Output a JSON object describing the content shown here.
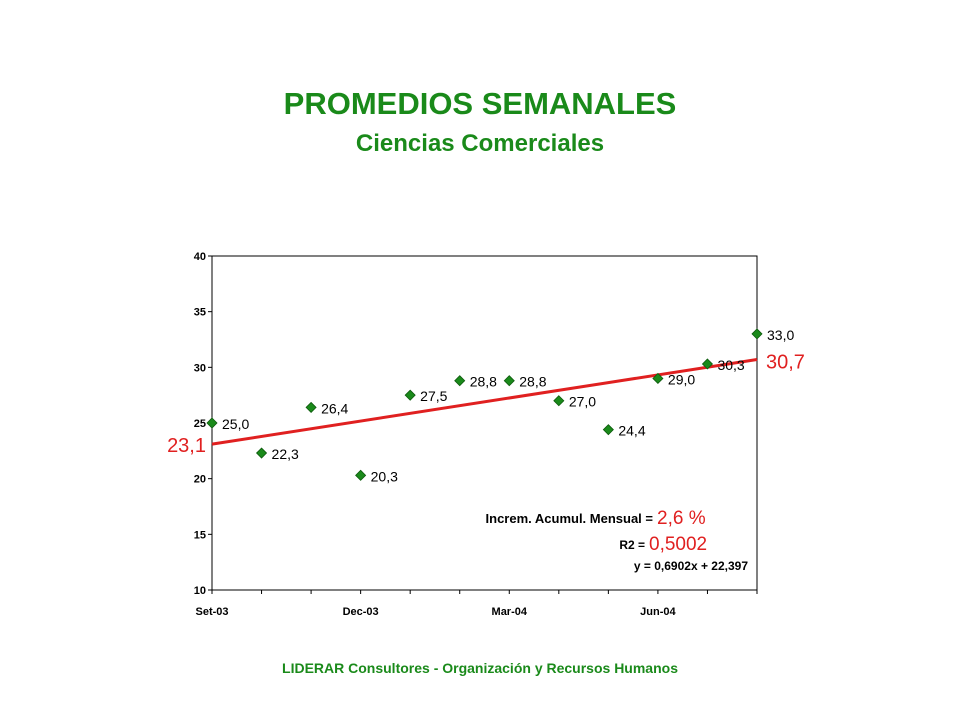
{
  "header": {
    "title": "PROMEDIOS SEMANALES",
    "subtitle": "Ciencias Comerciales"
  },
  "footer": "LIDERAR Consultores - Organización y Recursos Humanos",
  "colors": {
    "title": "#1a8a1a",
    "marker": "#1a8a1a",
    "trend": "#e02020",
    "annotation_value": "#e02020"
  },
  "chart_data": {
    "type": "scatter",
    "title": "PROMEDIOS SEMANALES",
    "subtitle": "Ciencias Comerciales",
    "xlabel": "",
    "ylabel": "",
    "ylim": [
      10,
      40
    ],
    "yticks": [
      "10",
      "15",
      "20",
      "25",
      "30",
      "35",
      "40"
    ],
    "x_categories": [
      "Set-03",
      "",
      "",
      "Dec-03",
      "",
      "",
      "Mar-04",
      "",
      "",
      "Jun-04",
      "",
      ""
    ],
    "x": [
      1,
      2,
      3,
      4,
      5,
      6,
      7,
      8,
      9,
      10,
      11,
      12
    ],
    "values": [
      25.0,
      22.3,
      26.4,
      20.3,
      27.5,
      28.8,
      28.8,
      27.0,
      24.4,
      29.0,
      30.3,
      33.0
    ],
    "value_labels": [
      "25,0",
      "22,3",
      "26,4",
      "20,3",
      "27,5",
      "28,8",
      "28,8",
      "27,0",
      "24,4",
      "29,0",
      "30,3",
      "33,0"
    ],
    "trendline": {
      "start_value": 23.1,
      "end_value": 30.7,
      "start_label": "23,1",
      "end_label": "30,7"
    },
    "annotations": {
      "increment_label": "Increm. Acumul. Mensual =",
      "increment_value": "2,6 %",
      "r2_label": "R2 =",
      "r2_value": "0,5002",
      "equation": "y = 0,6902x + 22,397"
    },
    "grid": false,
    "legend": "none"
  }
}
